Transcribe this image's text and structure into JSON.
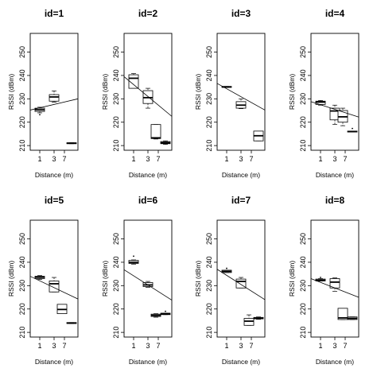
{
  "chart_data": [
    {
      "type": "boxplot",
      "title": "id=1",
      "xlabel": "Distance (m)",
      "ylabel": "RSSI (dBm)",
      "ylim": [
        208,
        258
      ],
      "yticks": [
        210,
        220,
        230,
        240,
        250
      ],
      "xticks": [
        "1",
        "3",
        "7"
      ],
      "boxes": [
        {
          "pos": 1,
          "q1": 224.6,
          "median": 225.3,
          "q3": 226.0,
          "whisker_low": 224.0,
          "whisker_high": 226.4,
          "outliers": [
            223.2
          ]
        },
        {
          "pos": 3,
          "q1": 229.0,
          "median": 230.8,
          "q3": 231.8,
          "whisker_low": 228.6,
          "whisker_high": 233.4,
          "outliers": []
        },
        {
          "pos": 7,
          "q1": 210.8,
          "median": 211.0,
          "q3": 211.2,
          "whisker_low": 210.8,
          "whisker_high": 211.2,
          "outliers": []
        }
      ],
      "fit_line": {
        "y_start": 225.2,
        "y_end": 230.0
      }
    },
    {
      "type": "boxplot",
      "title": "id=2",
      "xlabel": "Distance (m)",
      "ylabel": "RSSI (dBm)",
      "ylim": [
        208,
        258
      ],
      "yticks": [
        210,
        220,
        230,
        240,
        250
      ],
      "xticks": [
        "1",
        "3",
        "7"
      ],
      "boxes": [
        {
          "pos": 1,
          "q1": 234.5,
          "median": 238.8,
          "q3": 240.3,
          "whisker_low": 234.5,
          "whisker_high": 240.8,
          "outliers": []
        },
        {
          "pos": 3,
          "q1": 228.0,
          "median": 230.5,
          "q3": 233.5,
          "whisker_low": 226.0,
          "whisker_high": 234.5,
          "outliers": []
        },
        {
          "pos": 5,
          "q1": 213.0,
          "median": 213.3,
          "q3": 219.0,
          "whisker_low": 212.8,
          "whisker_high": 219.0,
          "outliers": []
        },
        {
          "pos": 7,
          "q1": 210.8,
          "median": 211.2,
          "q3": 211.7,
          "whisker_low": 210.5,
          "whisker_high": 212.0,
          "outliers": []
        }
      ],
      "fit_line": {
        "y_start": 239.5,
        "y_end": 222.5
      }
    },
    {
      "type": "boxplot",
      "title": "id=3",
      "xlabel": "Distance (m)",
      "ylabel": "RSSI (dBm)",
      "ylim": [
        208,
        258
      ],
      "yticks": [
        210,
        220,
        230,
        240,
        250
      ],
      "xticks": [
        "1",
        "3",
        "7"
      ],
      "boxes": [
        {
          "pos": 1,
          "q1": 234.9,
          "median": 235.1,
          "q3": 235.3,
          "whisker_low": 234.9,
          "whisker_high": 235.3,
          "outliers": []
        },
        {
          "pos": 3,
          "q1": 226.0,
          "median": 227.3,
          "q3": 228.8,
          "whisker_low": 225.8,
          "whisker_high": 230.0,
          "outliers": []
        },
        {
          "pos": 7,
          "q1": 212.0,
          "median": 214.2,
          "q3": 216.2,
          "whisker_low": 212.0,
          "whisker_high": 216.2,
          "outliers": []
        }
      ],
      "fit_line": {
        "y_start": 236.6,
        "y_end": 225.2
      }
    },
    {
      "type": "boxplot",
      "title": "id=4",
      "xlabel": "Distance (m)",
      "ylabel": "RSSI (dBm)",
      "ylim": [
        208,
        258
      ],
      "yticks": [
        210,
        220,
        230,
        240,
        250
      ],
      "xticks": [
        "1",
        "3",
        "7"
      ],
      "boxes": [
        {
          "pos": 1,
          "q1": 227.6,
          "median": 228.6,
          "q3": 229.0,
          "whisker_low": 227.3,
          "whisker_high": 229.3,
          "outliers": []
        },
        {
          "pos": 3,
          "q1": 221.0,
          "median": 224.8,
          "q3": 226.0,
          "whisker_low": 219.0,
          "whisker_high": 227.3,
          "outliers": []
        },
        {
          "pos": 5,
          "q1": 220.0,
          "median": 222.3,
          "q3": 225.0,
          "whisker_low": 218.5,
          "whisker_high": 226.0,
          "outliers": []
        },
        {
          "pos": 7,
          "q1": 215.8,
          "median": 216.0,
          "q3": 216.2,
          "whisker_low": 215.8,
          "whisker_high": 216.2,
          "outliers": [
            217.3
          ]
        }
      ],
      "fit_line": {
        "y_start": 228.8,
        "y_end": 222.2
      }
    },
    {
      "type": "boxplot",
      "title": "id=5",
      "xlabel": "Distance (m)",
      "ylabel": "RSSI (dBm)",
      "ylim": [
        208,
        258
      ],
      "yticks": [
        210,
        220,
        230,
        240,
        250
      ],
      "xticks": [
        "1",
        "3",
        "7"
      ],
      "boxes": [
        {
          "pos": 1,
          "q1": 233.0,
          "median": 233.6,
          "q3": 234.0,
          "whisker_low": 232.6,
          "whisker_high": 234.3,
          "outliers": []
        },
        {
          "pos": 3,
          "q1": 227.3,
          "median": 230.8,
          "q3": 232.0,
          "whisker_low": 227.3,
          "whisker_high": 233.5,
          "outliers": []
        },
        {
          "pos": 5,
          "q1": 218.0,
          "median": 219.8,
          "q3": 222.0,
          "whisker_low": 218.0,
          "whisker_high": 222.0,
          "outliers": []
        },
        {
          "pos": 7,
          "q1": 213.8,
          "median": 214.0,
          "q3": 214.2,
          "whisker_low": 213.8,
          "whisker_high": 214.2,
          "outliers": []
        }
      ],
      "fit_line": {
        "y_start": 234.0,
        "y_end": 224.3
      }
    },
    {
      "type": "boxplot",
      "title": "id=6",
      "xlabel": "Distance (m)",
      "ylabel": "RSSI (dBm)",
      "ylim": [
        208,
        258
      ],
      "yticks": [
        210,
        220,
        230,
        240,
        250
      ],
      "xticks": [
        "1",
        "3",
        "7"
      ],
      "boxes": [
        {
          "pos": 1,
          "q1": 239.5,
          "median": 240.0,
          "q3": 240.8,
          "whisker_low": 239.2,
          "whisker_high": 241.0,
          "outliers": [
            242.6
          ]
        },
        {
          "pos": 3,
          "q1": 229.6,
          "median": 230.3,
          "q3": 231.3,
          "whisker_low": 229.3,
          "whisker_high": 231.8,
          "outliers": []
        },
        {
          "pos": 5,
          "q1": 216.8,
          "median": 217.3,
          "q3": 217.8,
          "whisker_low": 216.5,
          "whisker_high": 218.0,
          "outliers": []
        },
        {
          "pos": 7,
          "q1": 217.6,
          "median": 218.0,
          "q3": 218.2,
          "whisker_low": 217.6,
          "whisker_high": 218.2,
          "outliers": [
            219.0
          ]
        }
      ],
      "fit_line": {
        "y_start": 236.8,
        "y_end": 223.8
      }
    },
    {
      "type": "boxplot",
      "title": "id=7",
      "xlabel": "Distance (m)",
      "ylabel": "RSSI (dBm)",
      "ylim": [
        208,
        258
      ],
      "yticks": [
        210,
        220,
        230,
        240,
        250
      ],
      "xticks": [
        "1",
        "3",
        "7"
      ],
      "boxes": [
        {
          "pos": 1,
          "q1": 235.6,
          "median": 236.1,
          "q3": 236.6,
          "whisker_low": 235.6,
          "whisker_high": 236.6,
          "outliers": [
            237.4
          ]
        },
        {
          "pos": 3,
          "q1": 229.0,
          "median": 231.8,
          "q3": 232.8,
          "whisker_low": 229.0,
          "whisker_high": 233.5,
          "outliers": []
        },
        {
          "pos": 5,
          "q1": 213.0,
          "median": 214.8,
          "q3": 216.0,
          "whisker_low": 213.0,
          "whisker_high": 217.5,
          "outliers": []
        },
        {
          "pos": 7,
          "q1": 215.8,
          "median": 216.0,
          "q3": 216.4,
          "whisker_low": 215.6,
          "whisker_high": 216.6,
          "outliers": []
        }
      ],
      "fit_line": {
        "y_start": 237.0,
        "y_end": 224.0
      }
    },
    {
      "type": "boxplot",
      "title": "id=8",
      "xlabel": "Distance (m)",
      "ylabel": "RSSI (dBm)",
      "ylim": [
        208,
        258
      ],
      "yticks": [
        210,
        220,
        230,
        240,
        250
      ],
      "xticks": [
        "1",
        "3",
        "7"
      ],
      "boxes": [
        {
          "pos": 1,
          "q1": 232.0,
          "median": 232.3,
          "q3": 232.8,
          "whisker_low": 232.0,
          "whisker_high": 233.0,
          "outliers": [
            233.5
          ]
        },
        {
          "pos": 3,
          "q1": 229.0,
          "median": 231.5,
          "q3": 233.0,
          "whisker_low": 227.6,
          "whisker_high": 233.3,
          "outliers": []
        },
        {
          "pos": 5,
          "q1": 215.5,
          "median": 216.2,
          "q3": 220.3,
          "whisker_low": 215.5,
          "whisker_high": 220.3,
          "outliers": []
        },
        {
          "pos": 7,
          "q1": 215.5,
          "median": 216.0,
          "q3": 216.6,
          "whisker_low": 215.5,
          "whisker_high": 216.6,
          "outliers": []
        }
      ],
      "fit_line": {
        "y_start": 233.0,
        "y_end": 225.0
      }
    }
  ]
}
